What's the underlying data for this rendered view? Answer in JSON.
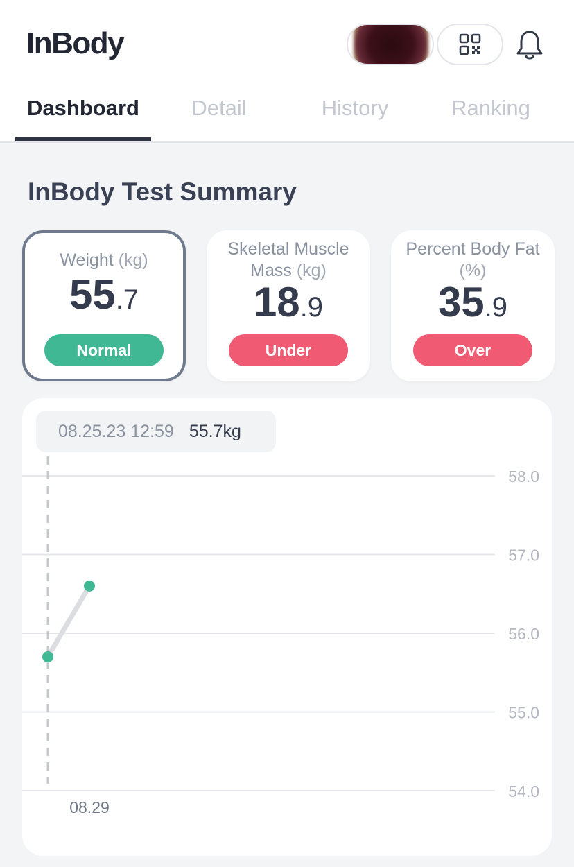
{
  "header": {
    "logo_text": "InBody",
    "icons": {
      "qr": "qr-code-icon",
      "bell": "bell-icon",
      "avatar": "profile-avatar"
    }
  },
  "tabs": [
    {
      "label": "Dashboard",
      "active": true
    },
    {
      "label": "Detail",
      "active": false
    },
    {
      "label": "History",
      "active": false
    },
    {
      "label": "Ranking",
      "active": false
    }
  ],
  "summary": {
    "title": "InBody Test Summary",
    "cards": [
      {
        "label": "Weight",
        "unit": "(kg)",
        "value_int": "55",
        "value_dec": ".7",
        "status": "Normal",
        "status_color": "#3fb893",
        "selected": true
      },
      {
        "label": "Skeletal Muscle Mass",
        "unit": "(kg)",
        "value_int": "18",
        "value_dec": ".9",
        "status": "Under",
        "status_color": "#f05a72",
        "selected": false
      },
      {
        "label": "Percent Body Fat",
        "unit": "(%)",
        "value_int": "35",
        "value_dec": ".9",
        "status": "Over",
        "status_color": "#f05a72",
        "selected": false
      }
    ]
  },
  "tooltip": {
    "date": "08.25.23 12:59",
    "value": "55.7kg"
  },
  "chart_data": {
    "type": "line",
    "ylim": [
      54.0,
      58.0
    ],
    "y_ticks": [
      "58.0",
      "57.0",
      "56.0",
      "55.0",
      "54.0"
    ],
    "x_labels": [
      "08.29"
    ],
    "points": [
      {
        "x": 0,
        "y": 55.7,
        "selected": true
      },
      {
        "x": 1,
        "y": 56.6,
        "selected": false
      }
    ],
    "point_color": "#3fb893",
    "line_color": "#dcdde0",
    "grid": true
  }
}
